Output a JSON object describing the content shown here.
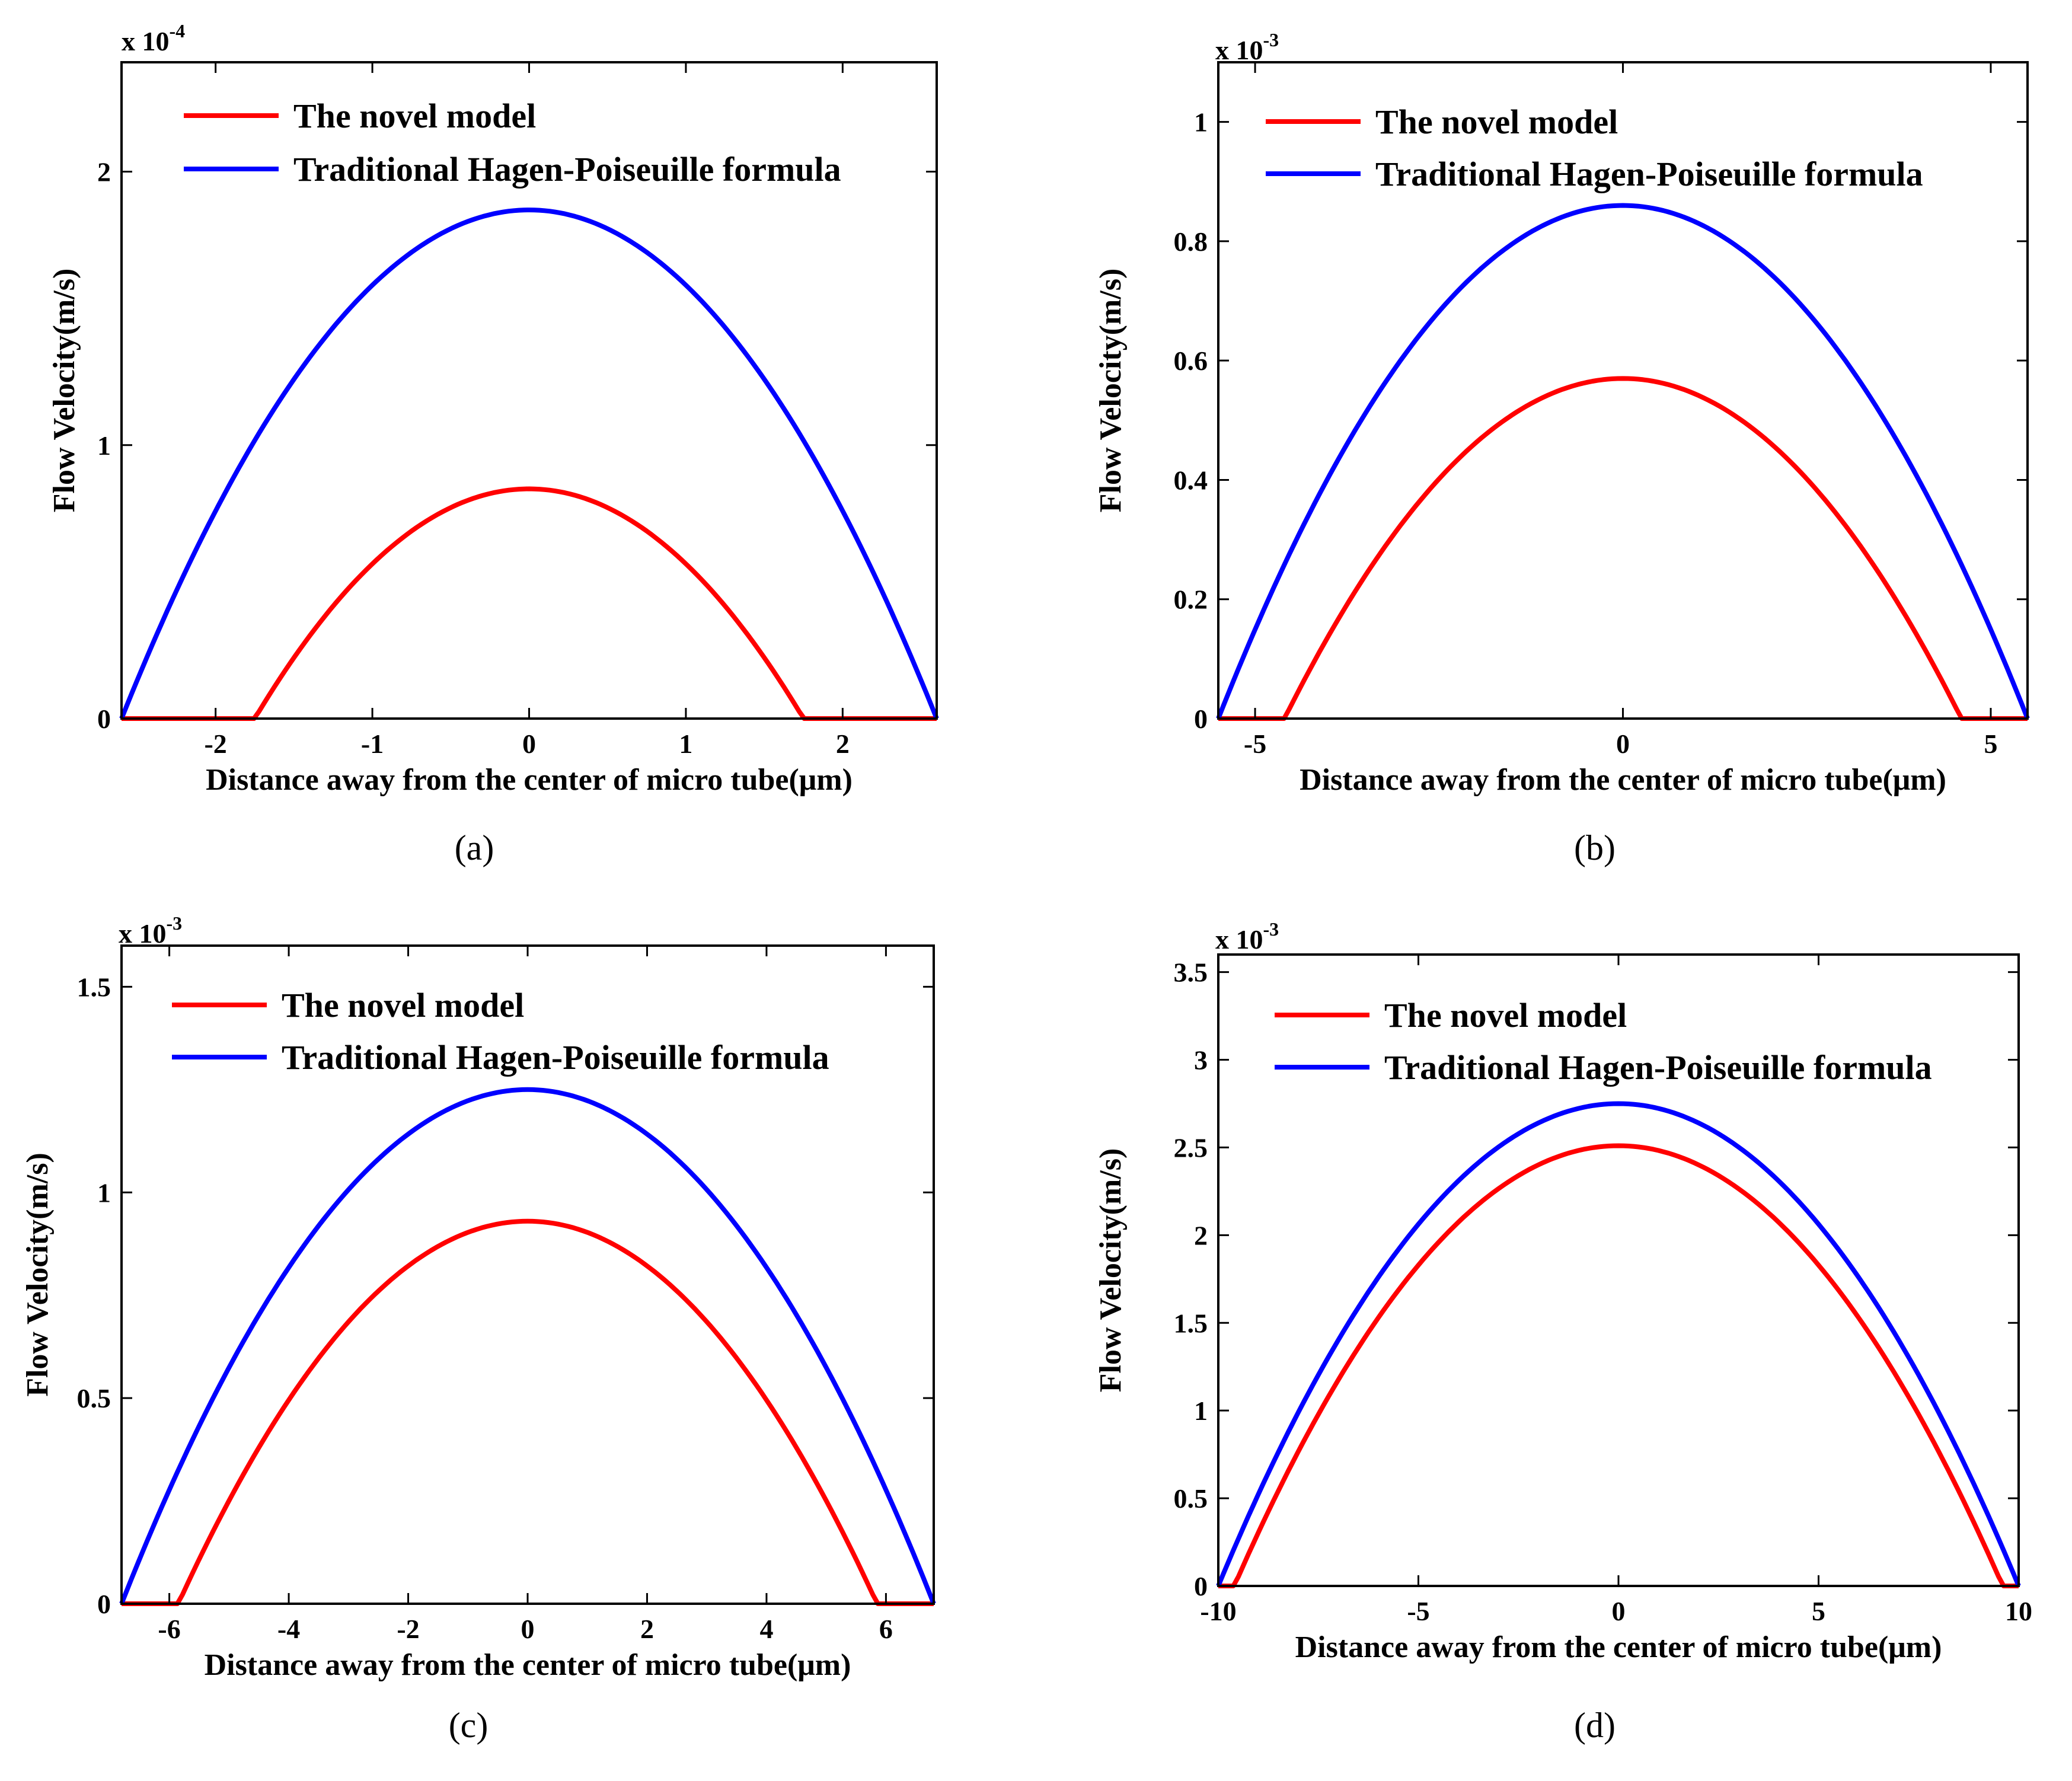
{
  "colors": {
    "novel": "#ff0000",
    "traditional": "#0000ff",
    "axis": "#000000"
  },
  "chart_data": [
    {
      "id": "a",
      "type": "line",
      "caption": "(a)",
      "xlabel": "Distance away from the center of micro tube(μm)",
      "ylabel": "Flow Velocity(m/s)",
      "exponent_label": "x 10",
      "exponent_power": "-4",
      "xlim": [
        -2.6,
        2.6
      ],
      "ylim": [
        0,
        2.4
      ],
      "xticks": [
        -2,
        -1,
        0,
        1,
        2
      ],
      "xtick_labels": [
        "-2",
        "-1",
        "0",
        "1",
        "2"
      ],
      "yticks": [
        0,
        1,
        2
      ],
      "ytick_labels": [
        "0",
        "1",
        "2"
      ],
      "legend": {
        "position": "top-left",
        "entries": [
          "The novel model",
          "Traditional Hagen-Poiseuille formula"
        ]
      },
      "series": [
        {
          "name": "The novel model",
          "color": "#ff0000",
          "shape": "parabola",
          "half_width": 1.75,
          "peak": 0.84
        },
        {
          "name": "Traditional Hagen-Poiseuille formula",
          "color": "#0000ff",
          "shape": "parabola",
          "half_width": 2.6,
          "peak": 1.86
        }
      ]
    },
    {
      "id": "b",
      "type": "line",
      "caption": "(b)",
      "xlabel": "Distance away from the center of micro tube(μm)",
      "ylabel": "Flow Velocity(m/s)",
      "exponent_label": "x 10",
      "exponent_power": "-3",
      "xlim": [
        -5.5,
        5.5
      ],
      "ylim": [
        0,
        1.1
      ],
      "xticks": [
        -5,
        0,
        5
      ],
      "xtick_labels": [
        "-5",
        "0",
        "5"
      ],
      "yticks": [
        0,
        0.2,
        0.4,
        0.6,
        0.8,
        1
      ],
      "ytick_labels": [
        "0",
        "0.2",
        "0.4",
        "0.6",
        "0.8",
        "1"
      ],
      "legend": {
        "position": "top-left",
        "entries": [
          "The novel model",
          "Traditional Hagen-Poiseuille formula"
        ]
      },
      "series": [
        {
          "name": "The novel model",
          "color": "#ff0000",
          "shape": "parabola",
          "half_width": 4.6,
          "peak": 0.57
        },
        {
          "name": "Traditional Hagen-Poiseuille formula",
          "color": "#0000ff",
          "shape": "parabola",
          "half_width": 5.5,
          "peak": 0.86
        }
      ]
    },
    {
      "id": "c",
      "type": "line",
      "caption": "(c)",
      "xlabel": "Distance away from the center of micro tube(μm)",
      "ylabel": "Flow Velocity(m/s)",
      "exponent_label": "x 10",
      "exponent_power": "-3",
      "xlim": [
        -6.8,
        6.8
      ],
      "ylim": [
        0,
        1.6
      ],
      "xticks": [
        -6,
        -4,
        -2,
        0,
        2,
        4,
        6
      ],
      "xtick_labels": [
        "-6",
        "-4",
        "-2",
        "0",
        "2",
        "4",
        "6"
      ],
      "yticks": [
        0,
        0.5,
        1,
        1.5
      ],
      "ytick_labels": [
        "0",
        "0.5",
        "1",
        "1.5"
      ],
      "legend": {
        "position": "top-left",
        "entries": [
          "The novel model",
          "Traditional Hagen-Poiseuille formula"
        ]
      },
      "series": [
        {
          "name": "The novel model",
          "color": "#ff0000",
          "shape": "parabola",
          "half_width": 5.85,
          "peak": 0.93
        },
        {
          "name": "Traditional Hagen-Poiseuille formula",
          "color": "#0000ff",
          "shape": "parabola",
          "half_width": 6.8,
          "peak": 1.25
        }
      ]
    },
    {
      "id": "d",
      "type": "line",
      "caption": "(d)",
      "xlabel": "Distance away from the center of micro tube(μm)",
      "ylabel": "Flow Velocity(m/s)",
      "exponent_label": "x 10",
      "exponent_power": "-3",
      "xlim": [
        -10,
        10
      ],
      "ylim": [
        0,
        3.6
      ],
      "xticks": [
        -10,
        -5,
        0,
        5,
        10
      ],
      "xtick_labels": [
        "-10",
        "-5",
        "0",
        "5",
        "10"
      ],
      "yticks": [
        0,
        0.5,
        1,
        1.5,
        2,
        2.5,
        3,
        3.5
      ],
      "ytick_labels": [
        "0",
        "0.5",
        "1",
        "1.5",
        "2",
        "2.5",
        "3",
        "3.5"
      ],
      "legend": {
        "position": "top-left",
        "entries": [
          "The novel model",
          "Traditional Hagen-Poiseuille formula"
        ]
      },
      "series": [
        {
          "name": "The novel model",
          "color": "#ff0000",
          "shape": "parabola",
          "half_width": 9.6,
          "peak": 2.51
        },
        {
          "name": "Traditional Hagen-Poiseuille formula",
          "color": "#0000ff",
          "shape": "parabola",
          "half_width": 10,
          "peak": 2.75
        }
      ]
    }
  ]
}
